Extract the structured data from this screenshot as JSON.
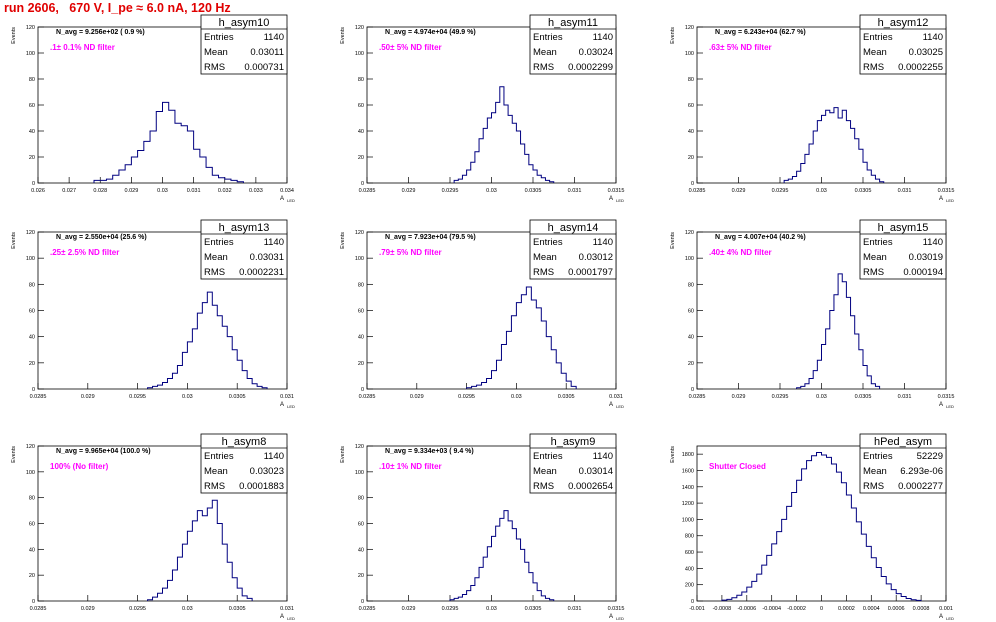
{
  "header": {
    "title": "run 2606,   670 V, I_pe ≈ 6.0 nA, 120 Hz"
  },
  "common": {
    "ylabel": "Events",
    "xlabel": "A",
    "xlabel_sub": "LED"
  },
  "colors": {
    "hist": "#000080",
    "frame": "#000000",
    "magenta": "#ff00ff",
    "header": "#e00000"
  },
  "stat_labels": [
    "Entries",
    "Mean",
    "RMS"
  ],
  "chart_data": [
    {
      "type": "histogram",
      "name": "h_asym10",
      "nstat": "N_avg = 9.256e+02  ( 0.9 %)",
      "filter": ".1± 0.1% ND filter",
      "entries": "1140",
      "mean": "0.03011",
      "rms": "0.000731",
      "xlim": [
        0.026,
        0.034
      ],
      "ylim": [
        0,
        120
      ],
      "xticks": [
        0.026,
        0.027,
        0.028,
        0.029,
        0.03,
        0.031,
        0.032,
        0.033,
        0.034
      ],
      "xticklabels": [
        "0.026",
        "0.027",
        "0.028",
        "0.029",
        "0.03",
        "0.031",
        "0.032",
        "0.033",
        "0.034"
      ],
      "yticks": [
        0,
        20,
        40,
        60,
        80,
        100,
        120
      ],
      "bins_x": [
        0.0278,
        0.028,
        0.0282,
        0.0284,
        0.0286,
        0.0288,
        0.029,
        0.0292,
        0.0294,
        0.0296,
        0.0298,
        0.03,
        0.0302,
        0.0304,
        0.0306,
        0.0308,
        0.031,
        0.0312,
        0.0314,
        0.0316,
        0.0318,
        0.032,
        0.0322,
        0.0324
      ],
      "values": [
        2,
        2,
        3,
        6,
        10,
        14,
        20,
        25,
        32,
        40,
        55,
        62,
        56,
        46,
        44,
        40,
        26,
        20,
        12,
        6,
        4,
        3,
        2,
        1
      ]
    },
    {
      "type": "histogram",
      "name": "h_asym11",
      "nstat": "N_avg = 4.974e+04  (49.9 %)",
      "filter": ".50± 5% ND filter",
      "entries": "1140",
      "mean": "0.03024",
      "rms": "0.0002299",
      "xlim": [
        0.0285,
        0.0315
      ],
      "ylim": [
        0,
        120
      ],
      "xticks": [
        0.0285,
        0.029,
        0.0295,
        0.03,
        0.0305,
        0.031,
        0.0315
      ],
      "xticklabels": [
        "0.0285",
        "0.029",
        "0.0295",
        "0.03",
        "0.0305",
        "0.031",
        "0.0315"
      ],
      "yticks": [
        0,
        20,
        40,
        60,
        80,
        100,
        120
      ],
      "bins_x": [
        0.02955,
        0.0296,
        0.02965,
        0.0297,
        0.02975,
        0.0298,
        0.02985,
        0.0299,
        0.02995,
        0.03,
        0.03005,
        0.0301,
        0.03015,
        0.0302,
        0.03025,
        0.0303,
        0.03035,
        0.0304,
        0.03045,
        0.0305,
        0.03055,
        0.0306,
        0.03065,
        0.0307
      ],
      "values": [
        2,
        3,
        6,
        10,
        16,
        24,
        34,
        42,
        50,
        54,
        62,
        74,
        60,
        52,
        46,
        40,
        30,
        22,
        14,
        10,
        6,
        4,
        2,
        1
      ]
    },
    {
      "type": "histogram",
      "name": "h_asym12",
      "nstat": "N_avg = 6.243e+04  (62.7 %)",
      "filter": ".63± 5% ND filter",
      "entries": "1140",
      "mean": "0.03025",
      "rms": "0.0002255",
      "xlim": [
        0.0285,
        0.0315
      ],
      "ylim": [
        0,
        120
      ],
      "xticks": [
        0.0285,
        0.029,
        0.0295,
        0.03,
        0.0305,
        0.031,
        0.0315
      ],
      "xticklabels": [
        "0.0285",
        "0.029",
        "0.0295",
        "0.03",
        "0.0305",
        "0.031",
        "0.0315"
      ],
      "yticks": [
        0,
        20,
        40,
        60,
        80,
        100,
        120
      ],
      "bins_x": [
        0.02955,
        0.0296,
        0.02965,
        0.0297,
        0.02975,
        0.0298,
        0.02985,
        0.0299,
        0.02995,
        0.03,
        0.03005,
        0.0301,
        0.03015,
        0.0302,
        0.03025,
        0.0303,
        0.03035,
        0.0304,
        0.03045,
        0.0305,
        0.03055,
        0.0306,
        0.03065,
        0.0307
      ],
      "values": [
        2,
        3,
        5,
        9,
        15,
        22,
        30,
        40,
        48,
        52,
        56,
        54,
        58,
        50,
        56,
        48,
        42,
        34,
        26,
        16,
        10,
        6,
        3,
        1
      ]
    },
    {
      "type": "histogram",
      "name": "h_asym13",
      "nstat": "N_avg = 2.550e+04  (25.6 %)",
      "filter": ".25± 2.5% ND filter",
      "entries": "1140",
      "mean": "0.03031",
      "rms": "0.0002231",
      "xlim": [
        0.0285,
        0.031
      ],
      "ylim": [
        0,
        120
      ],
      "xticks": [
        0.0285,
        0.029,
        0.0295,
        0.03,
        0.0305,
        0.031
      ],
      "xticklabels": [
        "0.0285",
        "0.029",
        "0.0295",
        "0.03",
        "0.0305",
        "0.031"
      ],
      "yticks": [
        0,
        20,
        40,
        60,
        80,
        100,
        120
      ],
      "bins_x": [
        0.0296,
        0.02965,
        0.0297,
        0.02975,
        0.0298,
        0.02985,
        0.0299,
        0.02995,
        0.03,
        0.03005,
        0.0301,
        0.03015,
        0.0302,
        0.03025,
        0.0303,
        0.03035,
        0.0304,
        0.03045,
        0.0305,
        0.03055,
        0.0306,
        0.03065,
        0.0307,
        0.03075
      ],
      "values": [
        1,
        2,
        3,
        5,
        8,
        12,
        18,
        28,
        36,
        46,
        58,
        66,
        74,
        64,
        56,
        48,
        40,
        30,
        22,
        14,
        8,
        4,
        2,
        1
      ]
    },
    {
      "type": "histogram",
      "name": "h_asym14",
      "nstat": "N_avg = 7.923e+04  (79.5 %)",
      "filter": ".79± 5% ND filter",
      "entries": "1140",
      "mean": "0.03012",
      "rms": "0.0001797",
      "xlim": [
        0.0285,
        0.031
      ],
      "ylim": [
        0,
        120
      ],
      "xticks": [
        0.0285,
        0.029,
        0.0295,
        0.03,
        0.0305,
        0.031
      ],
      "xticklabels": [
        "0.0285",
        "0.029",
        "0.0295",
        "0.03",
        "0.0305",
        "0.031"
      ],
      "yticks": [
        0,
        20,
        40,
        60,
        80,
        100,
        120
      ],
      "bins_x": [
        0.0295,
        0.02955,
        0.0296,
        0.02965,
        0.0297,
        0.02975,
        0.0298,
        0.02985,
        0.0299,
        0.02995,
        0.03,
        0.03005,
        0.0301,
        0.03015,
        0.0302,
        0.03025,
        0.0303,
        0.03035,
        0.0304,
        0.03045,
        0.0305,
        0.03055
      ],
      "values": [
        1,
        2,
        3,
        5,
        8,
        14,
        22,
        34,
        44,
        56,
        66,
        72,
        78,
        68,
        62,
        52,
        40,
        30,
        20,
        12,
        6,
        2
      ]
    },
    {
      "type": "histogram",
      "name": "h_asym15",
      "nstat": "N_avg = 4.007e+04  (40.2 %)",
      "filter": ".40± 4% ND filter",
      "entries": "1140",
      "mean": "0.03019",
      "rms": "0.000194",
      "xlim": [
        0.0285,
        0.0315
      ],
      "ylim": [
        0,
        120
      ],
      "xticks": [
        0.0285,
        0.029,
        0.0295,
        0.03,
        0.0305,
        0.031,
        0.0315
      ],
      "xticklabels": [
        "0.0285",
        "0.029",
        "0.0295",
        "0.03",
        "0.0305",
        "0.031",
        "0.0315"
      ],
      "yticks": [
        0,
        20,
        40,
        60,
        80,
        100,
        120
      ],
      "bins_x": [
        0.0297,
        0.02975,
        0.0298,
        0.02985,
        0.0299,
        0.02995,
        0.03,
        0.03005,
        0.0301,
        0.03015,
        0.0302,
        0.03025,
        0.0303,
        0.03035,
        0.0304,
        0.03045,
        0.0305,
        0.03055,
        0.0306,
        0.03065
      ],
      "values": [
        1,
        2,
        4,
        8,
        14,
        22,
        34,
        46,
        60,
        72,
        88,
        82,
        70,
        56,
        42,
        30,
        18,
        10,
        4,
        2
      ]
    },
    {
      "type": "histogram",
      "name": "h_asym8",
      "nstat": "N_avg = 9.965e+04  (100.0 %)",
      "filter": "100% (No filter)",
      "entries": "1140",
      "mean": "0.03023",
      "rms": "0.0001883",
      "xlim": [
        0.0285,
        0.031
      ],
      "ylim": [
        0,
        120
      ],
      "xticks": [
        0.0285,
        0.029,
        0.0295,
        0.03,
        0.0305,
        0.031
      ],
      "xticklabels": [
        "0.0285",
        "0.029",
        "0.0295",
        "0.03",
        "0.0305",
        "0.031"
      ],
      "yticks": [
        0,
        20,
        40,
        60,
        80,
        100,
        120
      ],
      "bins_x": [
        0.0296,
        0.02965,
        0.0297,
        0.02975,
        0.0298,
        0.02985,
        0.0299,
        0.02995,
        0.03,
        0.03005,
        0.0301,
        0.03015,
        0.0302,
        0.03025,
        0.0303,
        0.03035,
        0.0304,
        0.03045,
        0.0305,
        0.03055,
        0.0306
      ],
      "values": [
        1,
        3,
        6,
        10,
        16,
        24,
        34,
        44,
        54,
        62,
        70,
        66,
        72,
        78,
        60,
        44,
        30,
        18,
        10,
        4,
        2
      ]
    },
    {
      "type": "histogram",
      "name": "h_asym9",
      "nstat": "N_avg = 9.334e+03  ( 9.4 %)",
      "filter": ".10± 1% ND filter",
      "entries": "1140",
      "mean": "0.03014",
      "rms": "0.0002654",
      "xlim": [
        0.0285,
        0.0315
      ],
      "ylim": [
        0,
        120
      ],
      "xticks": [
        0.0285,
        0.029,
        0.0295,
        0.03,
        0.0305,
        0.031,
        0.0315
      ],
      "xticklabels": [
        "0.0285",
        "0.029",
        "0.0295",
        "0.03",
        "0.0305",
        "0.031",
        "0.0315"
      ],
      "yticks": [
        0,
        20,
        40,
        60,
        80,
        100,
        120
      ],
      "bins_x": [
        0.0295,
        0.02955,
        0.0296,
        0.02965,
        0.0297,
        0.02975,
        0.0298,
        0.02985,
        0.0299,
        0.02995,
        0.03,
        0.03005,
        0.0301,
        0.03015,
        0.0302,
        0.03025,
        0.0303,
        0.03035,
        0.0304,
        0.03045,
        0.0305,
        0.03055,
        0.0306,
        0.03065,
        0.0307
      ],
      "values": [
        1,
        2,
        3,
        5,
        8,
        12,
        18,
        26,
        34,
        42,
        50,
        58,
        64,
        70,
        62,
        56,
        48,
        40,
        30,
        22,
        14,
        8,
        4,
        2,
        1
      ]
    },
    {
      "type": "histogram",
      "name": "hPed_asym",
      "nstat": "",
      "filter": "Shutter Closed",
      "entries": "52229",
      "mean": "6.293e-06",
      "rms": "0.0002277",
      "xlim": [
        -0.001,
        0.001
      ],
      "ylim": [
        0,
        1900
      ],
      "xticks": [
        -0.001,
        -0.0008,
        -0.0006,
        -0.0004,
        -0.0002,
        0,
        0.0002,
        0.0004,
        0.0006,
        0.0008,
        0.001
      ],
      "xticklabels": [
        "-0.001",
        "-0.0008",
        "-0.0006",
        "-0.0004",
        "-0.0002",
        "0",
        "0.0002",
        "0.0004",
        "0.0006",
        "0.0008",
        "0.001"
      ],
      "yticks": [
        0,
        200,
        400,
        600,
        800,
        1000,
        1200,
        1400,
        1600,
        1800
      ],
      "bins_x": [
        -0.0008,
        -0.00076,
        -0.00072,
        -0.00068,
        -0.00064,
        -0.0006,
        -0.00056,
        -0.00052,
        -0.00048,
        -0.00044,
        -0.0004,
        -0.00036,
        -0.00032,
        -0.00028,
        -0.00024,
        -0.0002,
        -0.00016,
        -0.00012,
        -8e-05,
        -4e-05,
        0.0,
        4e-05,
        8e-05,
        0.00012,
        0.00016,
        0.0002,
        0.00024,
        0.00028,
        0.00032,
        0.00036,
        0.0004,
        0.00044,
        0.00048,
        0.00052,
        0.00056,
        0.0006,
        0.00064,
        0.00068,
        0.00072,
        0.00076
      ],
      "values": [
        10,
        20,
        40,
        70,
        110,
        170,
        240,
        330,
        440,
        560,
        700,
        850,
        1000,
        1160,
        1330,
        1480,
        1620,
        1720,
        1780,
        1820,
        1790,
        1760,
        1680,
        1580,
        1450,
        1300,
        1140,
        970,
        820,
        670,
        530,
        410,
        300,
        210,
        140,
        90,
        55,
        30,
        15,
        8
      ]
    }
  ]
}
